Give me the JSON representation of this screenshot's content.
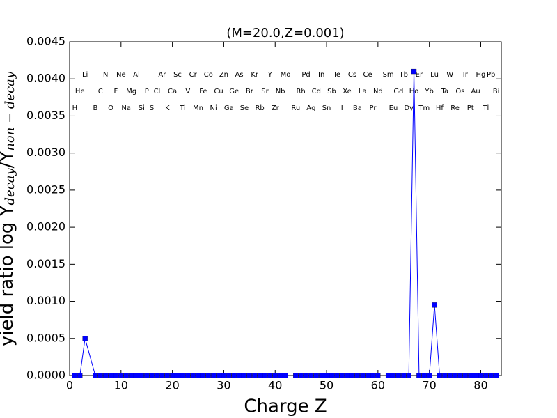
{
  "chart_data": {
    "type": "line",
    "title": "(M=20.0,Z=0.001)",
    "xlabel": "Charge Z",
    "ylabel": [
      {
        "text": "yield ratio log Y",
        "sub": false
      },
      {
        "text": "decay",
        "sub": true
      },
      {
        "text": "/Y",
        "sub": false
      },
      {
        "text": "non − decay",
        "sub": true
      }
    ],
    "x": [
      1,
      2,
      3,
      5,
      6,
      7,
      8,
      9,
      10,
      11,
      12,
      13,
      14,
      15,
      16,
      17,
      18,
      19,
      20,
      21,
      22,
      23,
      24,
      25,
      26,
      27,
      28,
      29,
      30,
      31,
      32,
      33,
      34,
      35,
      36,
      37,
      38,
      39,
      40,
      41,
      42,
      43,
      44,
      45,
      46,
      47,
      48,
      49,
      50,
      51,
      52,
      53,
      54,
      55,
      56,
      57,
      58,
      59,
      60,
      61,
      62,
      63,
      64,
      65,
      66,
      67,
      68,
      69,
      70,
      71,
      72,
      73,
      74,
      75,
      76,
      77,
      78,
      79,
      80,
      81,
      82,
      83
    ],
    "series": [
      {
        "color": "#0000ff",
        "marker": "square",
        "values": [
          0,
          0,
          0.0005,
          0,
          0,
          0,
          0,
          0,
          0,
          0,
          0,
          0,
          0,
          0,
          0,
          0,
          0,
          0,
          0,
          0,
          0,
          0,
          0,
          0,
          0,
          0,
          0,
          0,
          0,
          0,
          0,
          0,
          0,
          0,
          0,
          0,
          0,
          0,
          0,
          0,
          0,
          null,
          0,
          0,
          0,
          0,
          0,
          0,
          0,
          0,
          0,
          0,
          0,
          0,
          0,
          0,
          0,
          0,
          0,
          null,
          0,
          0,
          0,
          0,
          0,
          0.0041,
          0,
          0,
          0,
          0.00095,
          0,
          0,
          0,
          0,
          0,
          0,
          0,
          0,
          0,
          0,
          0,
          0
        ]
      }
    ],
    "xlim": [
      0,
      84
    ],
    "xticks": [
      0,
      10,
      20,
      30,
      40,
      50,
      60,
      70,
      80
    ],
    "ylim": [
      0,
      0.0045
    ],
    "yticks": [
      {
        "value": 0,
        "label": "0.0000"
      },
      {
        "value": 0.0005,
        "label": "0.0005"
      },
      {
        "value": 0.001,
        "label": "0.0010"
      },
      {
        "value": 0.0015,
        "label": "0.0015"
      },
      {
        "value": 0.002,
        "label": "0.0020"
      },
      {
        "value": 0.0025,
        "label": "0.0025"
      },
      {
        "value": 0.003,
        "label": "0.0030"
      },
      {
        "value": 0.0035,
        "label": "0.0035"
      },
      {
        "value": 0.004,
        "label": "0.0040"
      },
      {
        "value": 0.0045,
        "label": "0.0045"
      }
    ],
    "element_rows": [
      [
        {
          "label": "Li",
          "x": 3
        },
        {
          "label": "N",
          "x": 7
        },
        {
          "label": "Ne",
          "x": 10
        },
        {
          "label": "Al",
          "x": 13
        },
        {
          "label": "Ar",
          "x": 18
        },
        {
          "label": "Sc",
          "x": 21
        },
        {
          "label": "Cr",
          "x": 24
        },
        {
          "label": "Co",
          "x": 27
        },
        {
          "label": "Zn",
          "x": 30
        },
        {
          "label": "As",
          "x": 33
        },
        {
          "label": "Kr",
          "x": 36
        },
        {
          "label": "Y",
          "x": 39
        },
        {
          "label": "Mo",
          "x": 42
        },
        {
          "label": "Pd",
          "x": 46
        },
        {
          "label": "In",
          "x": 49
        },
        {
          "label": "Te",
          "x": 52
        },
        {
          "label": "Cs",
          "x": 55
        },
        {
          "label": "Ce",
          "x": 58
        },
        {
          "label": "Sm",
          "x": 62
        },
        {
          "label": "Tb",
          "x": 65
        },
        {
          "label": "Er",
          "x": 68
        },
        {
          "label": "Lu",
          "x": 71
        },
        {
          "label": "W",
          "x": 74
        },
        {
          "label": "Ir",
          "x": 77
        },
        {
          "label": "Hg",
          "x": 80
        },
        {
          "label": "Pb",
          "x": 82
        }
      ],
      [
        {
          "label": "He",
          "x": 2
        },
        {
          "label": "C",
          "x": 6
        },
        {
          "label": "F",
          "x": 9
        },
        {
          "label": "Mg",
          "x": 12
        },
        {
          "label": "P",
          "x": 15
        },
        {
          "label": "Cl",
          "x": 17
        },
        {
          "label": "Ca",
          "x": 20
        },
        {
          "label": "V",
          "x": 23
        },
        {
          "label": "Fe",
          "x": 26
        },
        {
          "label": "Cu",
          "x": 29
        },
        {
          "label": "Ge",
          "x": 32
        },
        {
          "label": "Br",
          "x": 35
        },
        {
          "label": "Sr",
          "x": 38
        },
        {
          "label": "Nb",
          "x": 41
        },
        {
          "label": "Rh",
          "x": 45
        },
        {
          "label": "Cd",
          "x": 48
        },
        {
          "label": "Sb",
          "x": 51
        },
        {
          "label": "Xe",
          "x": 54
        },
        {
          "label": "La",
          "x": 57
        },
        {
          "label": "Nd",
          "x": 60
        },
        {
          "label": "Gd",
          "x": 64
        },
        {
          "label": "Ho",
          "x": 67
        },
        {
          "label": "Yb",
          "x": 70
        },
        {
          "label": "Ta",
          "x": 73
        },
        {
          "label": "Os",
          "x": 76
        },
        {
          "label": "Au",
          "x": 79
        },
        {
          "label": "Bi",
          "x": 83
        }
      ],
      [
        {
          "label": "H",
          "x": 1
        },
        {
          "label": "B",
          "x": 5
        },
        {
          "label": "O",
          "x": 8
        },
        {
          "label": "Na",
          "x": 11
        },
        {
          "label": "Si",
          "x": 14
        },
        {
          "label": "S",
          "x": 16
        },
        {
          "label": "K",
          "x": 19
        },
        {
          "label": "Ti",
          "x": 22
        },
        {
          "label": "Mn",
          "x": 25
        },
        {
          "label": "Ni",
          "x": 28
        },
        {
          "label": "Ga",
          "x": 31
        },
        {
          "label": "Se",
          "x": 34
        },
        {
          "label": "Rb",
          "x": 37
        },
        {
          "label": "Zr",
          "x": 40
        },
        {
          "label": "Ru",
          "x": 44
        },
        {
          "label": "Ag",
          "x": 47
        },
        {
          "label": "Sn",
          "x": 50
        },
        {
          "label": "I",
          "x": 53
        },
        {
          "label": "Ba",
          "x": 56
        },
        {
          "label": "Pr",
          "x": 59
        },
        {
          "label": "Eu",
          "x": 63
        },
        {
          "label": "Dy",
          "x": 66
        },
        {
          "label": "Tm",
          "x": 69
        },
        {
          "label": "Hf",
          "x": 72
        },
        {
          "label": "Re",
          "x": 75
        },
        {
          "label": "Pt",
          "x": 78
        },
        {
          "label": "Tl",
          "x": 81
        }
      ]
    ]
  }
}
